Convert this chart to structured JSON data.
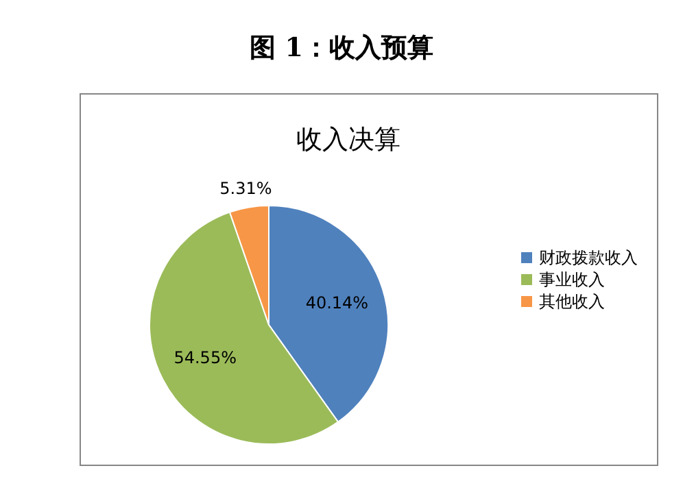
{
  "chart_data": {
    "type": "pie",
    "title": "图 1：收入预算",
    "subtitle": "收入决算",
    "categories": [
      "财政拨款收入",
      "事业收入",
      "其他收入"
    ],
    "values": [
      40.14,
      54.55,
      5.31
    ],
    "colors": [
      "#4f81bd",
      "#9bbb59",
      "#f79646"
    ],
    "value_labels": [
      "40.14%",
      "54.55%",
      "5.31%"
    ],
    "legend": "right"
  }
}
